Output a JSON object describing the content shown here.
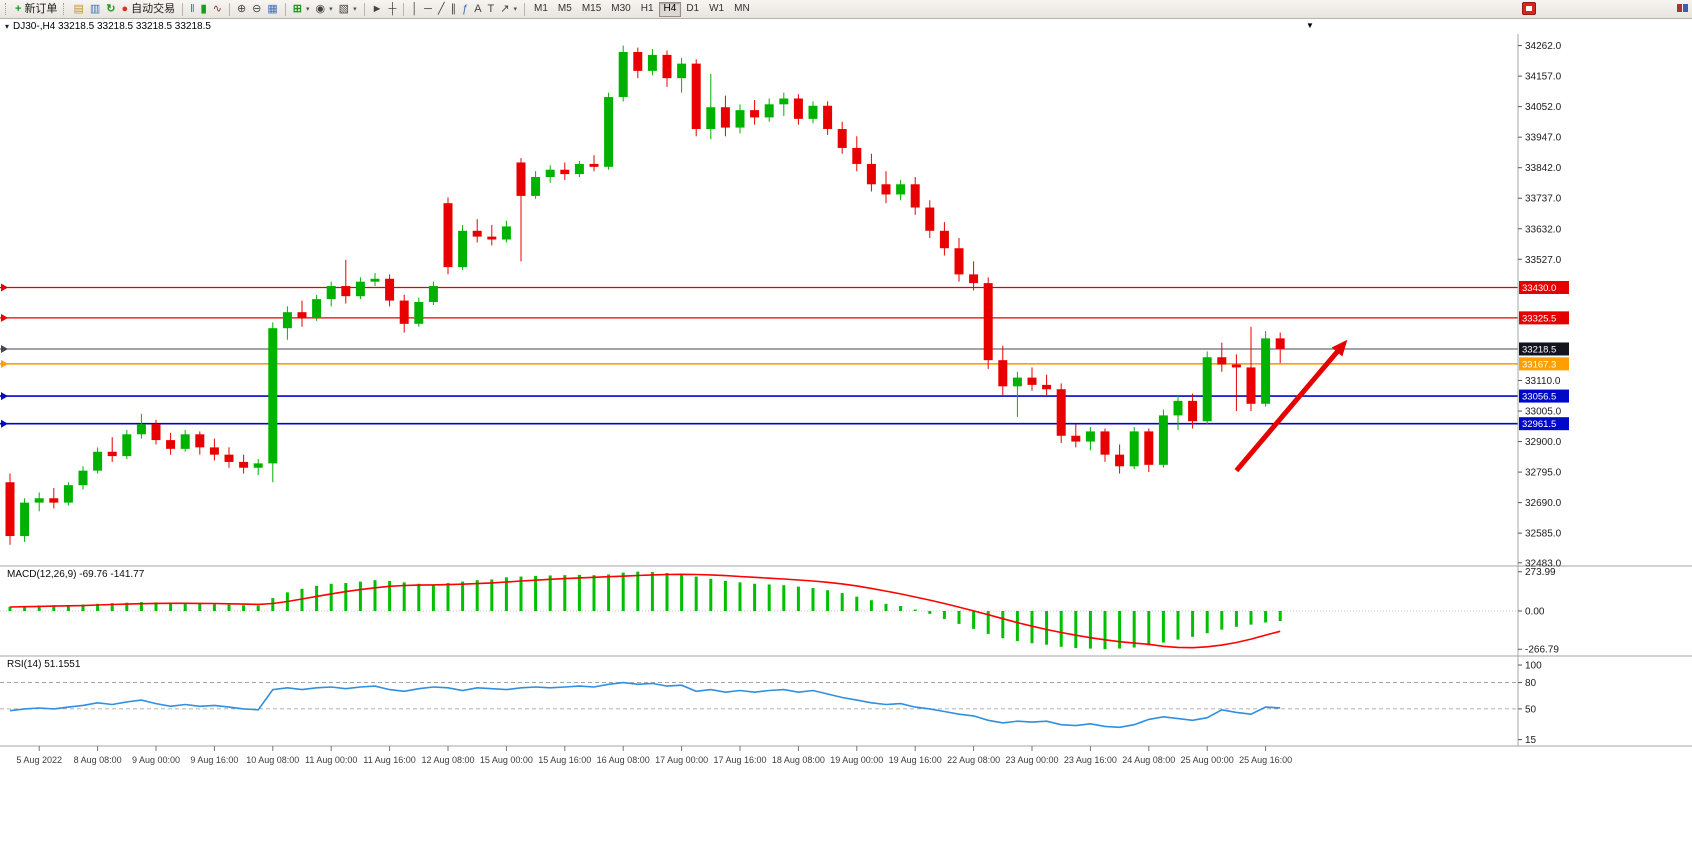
{
  "toolbar": {
    "new_order_label": "新订单",
    "autotrading_label": "自动交易",
    "timeframes": [
      "M1",
      "M5",
      "M15",
      "M30",
      "H1",
      "H4",
      "D1",
      "W1",
      "MN"
    ],
    "active_timeframe": "H4",
    "icons": {
      "new_order": "+",
      "market_watch": "▤",
      "data_window": "▥",
      "refresh": "↻",
      "autotrading_dot": "●",
      "bar_chart": "‖",
      "candle_chart": "▮",
      "line_chart": "∿",
      "zoom_in": "⊕",
      "zoom_out": "⊖",
      "tile_windows": "▦",
      "indicators": "⊞",
      "periods": "◉",
      "templates": "▧",
      "cursor": "►",
      "crosshair": "┼",
      "vertical_line": "│",
      "horizontal_line": "─",
      "trendline": "╱",
      "channel": "∥",
      "fibonacci": "ƒ",
      "text": "A",
      "text_label": "T",
      "arrow_tool": "↗",
      "caret": "▾",
      "header_marker": "▾",
      "shift_marker": "▼"
    }
  },
  "chart_header": {
    "title": "DJ30-,H4 33218.5 33218.5 33218.5 33218.5"
  },
  "chart_data": {
    "type": "candlestick",
    "symbol": "DJ30-",
    "timeframe": "H4",
    "ohlc_display": "33218.5 33218.5 33218.5 33218.5",
    "colors": {
      "up": "#00b200",
      "down": "#e80000",
      "macd_hist": "#00c000",
      "macd_signal": "#ff0000",
      "rsi_line": "#2f8fe0"
    },
    "y_ticks": [
      "34262.0",
      "34157.0",
      "34052.0",
      "33947.0",
      "33842.0",
      "33737.0",
      "33632.0",
      "33527.0",
      "33110.0",
      "33005.0",
      "32900.0",
      "32795.0",
      "32690.0",
      "32585.0",
      "32483.0"
    ],
    "price_lines": [
      {
        "price": 33430.0,
        "label": "33430.0",
        "color": "#e40000",
        "width": 1.3
      },
      {
        "price": 33325.5,
        "label": "33325.5",
        "color": "#e40000",
        "width": 1.3
      },
      {
        "price": 33218.5,
        "label": "33218.5",
        "color": "#46464f",
        "width": 1,
        "badge": "#14141e"
      },
      {
        "price": 33167.3,
        "label": "33167.3",
        "color": "#ff9e00",
        "width": 1.6
      },
      {
        "price": 33056.5,
        "label": "33056.5",
        "color": "#0008c8",
        "width": 1.6
      },
      {
        "price": 32961.5,
        "label": "32961.5",
        "color": "#0008c8",
        "width": 1.6
      }
    ],
    "trend_arrow": {
      "from_bar": 84,
      "from_price": 32800,
      "to_bar": 91.6,
      "to_price": 33250,
      "color": "#e60000"
    },
    "time_labels": [
      {
        "i": 2,
        "t": "5 Aug 2022"
      },
      {
        "i": 6,
        "t": "8 Aug 08:00"
      },
      {
        "i": 10,
        "t": "9 Aug 00:00"
      },
      {
        "i": 14,
        "t": "9 Aug 16:00"
      },
      {
        "i": 18,
        "t": "10 Aug 08:00"
      },
      {
        "i": 22,
        "t": "11 Aug 00:00"
      },
      {
        "i": 26,
        "t": "11 Aug 16:00"
      },
      {
        "i": 30,
        "t": "12 Aug 08:00"
      },
      {
        "i": 34,
        "t": "15 Aug 00:00"
      },
      {
        "i": 38,
        "t": "15 Aug 16:00"
      },
      {
        "i": 42,
        "t": "16 Aug 08:00"
      },
      {
        "i": 46,
        "t": "17 Aug 00:00"
      },
      {
        "i": 50,
        "t": "17 Aug 16:00"
      },
      {
        "i": 54,
        "t": "18 Aug 08:00"
      },
      {
        "i": 58,
        "t": "19 Aug 00:00"
      },
      {
        "i": 62,
        "t": "19 Aug 16:00"
      },
      {
        "i": 66,
        "t": "22 Aug 08:00"
      },
      {
        "i": 70,
        "t": "23 Aug 00:00"
      },
      {
        "i": 74,
        "t": "23 Aug 16:00"
      },
      {
        "i": 78,
        "t": "24 Aug 08:00"
      },
      {
        "i": 82,
        "t": "25 Aug 00:00"
      },
      {
        "i": 86,
        "t": "25 Aug 16:00"
      }
    ],
    "candles": [
      [
        32760,
        32790,
        32545,
        32575
      ],
      [
        32575,
        32705,
        32555,
        32690
      ],
      [
        32690,
        32725,
        32660,
        32705
      ],
      [
        32705,
        32740,
        32670,
        32690
      ],
      [
        32690,
        32760,
        32680,
        32750
      ],
      [
        32750,
        32815,
        32735,
        32800
      ],
      [
        32800,
        32880,
        32790,
        32865
      ],
      [
        32865,
        32915,
        32830,
        32850
      ],
      [
        32850,
        32940,
        32840,
        32925
      ],
      [
        32925,
        32995,
        32910,
        32960
      ],
      [
        32960,
        32975,
        32890,
        32905
      ],
      [
        32905,
        32930,
        32855,
        32875
      ],
      [
        32875,
        32940,
        32865,
        32925
      ],
      [
        32925,
        32935,
        32855,
        32880
      ],
      [
        32880,
        32910,
        32835,
        32855
      ],
      [
        32855,
        32880,
        32810,
        32830
      ],
      [
        32830,
        32855,
        32790,
        32810
      ],
      [
        32810,
        32840,
        32785,
        32825
      ],
      [
        32825,
        33310,
        32760,
        33290
      ],
      [
        33290,
        33365,
        33250,
        33345
      ],
      [
        33345,
        33385,
        33295,
        33325
      ],
      [
        33325,
        33405,
        33315,
        33390
      ],
      [
        33390,
        33450,
        33365,
        33435
      ],
      [
        33435,
        33525,
        33375,
        33400
      ],
      [
        33400,
        33465,
        33390,
        33450
      ],
      [
        33450,
        33480,
        33435,
        33460
      ],
      [
        33460,
        33475,
        33365,
        33385
      ],
      [
        33385,
        33405,
        33275,
        33305
      ],
      [
        33305,
        33395,
        33295,
        33380
      ],
      [
        33380,
        33450,
        33370,
        33435
      ],
      [
        33720,
        33740,
        33475,
        33500
      ],
      [
        33500,
        33645,
        33490,
        33625
      ],
      [
        33625,
        33665,
        33585,
        33605
      ],
      [
        33605,
        33645,
        33575,
        33595
      ],
      [
        33595,
        33660,
        33585,
        33640
      ],
      [
        33860,
        33875,
        33520,
        33745
      ],
      [
        33745,
        33830,
        33735,
        33810
      ],
      [
        33810,
        33850,
        33790,
        33835
      ],
      [
        33835,
        33860,
        33800,
        33820
      ],
      [
        33820,
        33865,
        33810,
        33855
      ],
      [
        33855,
        33885,
        33830,
        33845
      ],
      [
        33845,
        34100,
        33835,
        34085
      ],
      [
        34085,
        34262,
        34070,
        34240
      ],
      [
        34240,
        34255,
        34150,
        34175
      ],
      [
        34175,
        34250,
        34160,
        34230
      ],
      [
        34230,
        34245,
        34120,
        34150
      ],
      [
        34150,
        34220,
        34100,
        34200
      ],
      [
        34200,
        34215,
        33950,
        33975
      ],
      [
        33975,
        34165,
        33940,
        34050
      ],
      [
        34050,
        34090,
        33950,
        33980
      ],
      [
        33980,
        34060,
        33960,
        34040
      ],
      [
        34040,
        34075,
        33990,
        34015
      ],
      [
        34015,
        34080,
        34000,
        34060
      ],
      [
        34060,
        34100,
        34020,
        34080
      ],
      [
        34080,
        34095,
        33990,
        34010
      ],
      [
        34010,
        34070,
        33995,
        34055
      ],
      [
        34055,
        34070,
        33955,
        33975
      ],
      [
        33975,
        34000,
        33890,
        33910
      ],
      [
        33910,
        33950,
        33830,
        33855
      ],
      [
        33855,
        33890,
        33760,
        33785
      ],
      [
        33785,
        33830,
        33720,
        33750
      ],
      [
        33750,
        33800,
        33730,
        33785
      ],
      [
        33785,
        33810,
        33680,
        33705
      ],
      [
        33705,
        33730,
        33600,
        33625
      ],
      [
        33625,
        33655,
        33540,
        33565
      ],
      [
        33565,
        33600,
        33450,
        33475
      ],
      [
        33475,
        33520,
        33420,
        33445
      ],
      [
        33445,
        33465,
        33150,
        33180
      ],
      [
        33180,
        33230,
        33060,
        33090
      ],
      [
        33090,
        33140,
        32985,
        33120
      ],
      [
        33120,
        33155,
        33075,
        33095
      ],
      [
        33095,
        33130,
        33060,
        33080
      ],
      [
        33080,
        33100,
        32895,
        32920
      ],
      [
        32920,
        32960,
        32880,
        32900
      ],
      [
        32900,
        32950,
        32870,
        32935
      ],
      [
        32935,
        32945,
        32830,
        32855
      ],
      [
        32855,
        32890,
        32790,
        32815
      ],
      [
        32815,
        32950,
        32805,
        32935
      ],
      [
        32935,
        32945,
        32795,
        32820
      ],
      [
        32820,
        33010,
        32810,
        32990
      ],
      [
        32990,
        33060,
        32940,
        33040
      ],
      [
        33040,
        33065,
        32945,
        32970
      ],
      [
        32970,
        33210,
        32960,
        33190
      ],
      [
        33190,
        33240,
        33140,
        33165
      ],
      [
        33165,
        33200,
        33005,
        33155
      ],
      [
        33155,
        33295,
        33005,
        33030
      ],
      [
        33030,
        33280,
        33020,
        33255
      ],
      [
        33255,
        33275,
        33170,
        33218.5
      ]
    ],
    "indicators": {
      "macd": {
        "name": "MACD(12,26,9)",
        "label_text": "MACD(12,26,9) -69.76 -141.77",
        "main_value": -69.76,
        "signal_value": -141.77,
        "axis_ticks": [
          "273.99",
          "0.00",
          "-266.79"
        ],
        "histogram": [
          30,
          35,
          38,
          40,
          42,
          45,
          50,
          55,
          58,
          62,
          60,
          55,
          52,
          50,
          48,
          44,
          40,
          38,
          90,
          130,
          155,
          175,
          190,
          195,
          205,
          215,
          210,
          200,
          190,
          180,
          195,
          205,
          215,
          220,
          235,
          240,
          245,
          248,
          250,
          252,
          250,
          255,
          268,
          275,
          272,
          265,
          258,
          240,
          225,
          210,
          200,
          190,
          185,
          180,
          170,
          160,
          145,
          125,
          100,
          75,
          50,
          35,
          10,
          -20,
          -55,
          -90,
          -125,
          -160,
          -190,
          -210,
          -225,
          -235,
          -250,
          -258,
          -262,
          -266,
          -262,
          -255,
          -240,
          -220,
          -200,
          -180,
          -155,
          -130,
          -110,
          -95,
          -80,
          -69.76
        ],
        "signal": [
          28,
          30,
          32,
          34,
          36,
          38,
          42,
          45,
          48,
          51,
          53,
          54,
          54,
          53,
          52,
          50,
          48,
          46,
          52,
          66,
          84,
          102,
          119,
          135,
          149,
          162,
          172,
          178,
          181,
          182,
          184,
          187,
          191,
          196,
          202,
          209,
          215,
          221,
          226,
          231,
          235,
          239,
          243,
          248,
          252,
          255,
          256,
          255,
          252,
          247,
          241,
          235,
          229,
          223,
          216,
          209,
          200,
          189,
          175,
          158,
          139,
          119,
          98,
          76,
          52,
          27,
          1,
          -26,
          -54,
          -81,
          -106,
          -129,
          -150,
          -169,
          -186,
          -201,
          -214,
          -224,
          -232,
          -246,
          -254,
          -256,
          -250,
          -238,
          -220,
          -196,
          -168,
          -141.77
        ]
      },
      "rsi": {
        "name": "RSI(14)",
        "label_text": "RSI(14) 51.1551",
        "value": 51.1551,
        "axis_ticks": [
          "100",
          "80",
          "50",
          "15"
        ],
        "levels": [
          80,
          50
        ],
        "series": [
          48,
          50,
          51,
          50,
          52,
          54,
          57,
          55,
          58,
          60,
          56,
          53,
          55,
          53,
          54,
          52,
          50,
          49,
          72,
          74,
          72,
          74,
          75,
          73,
          75,
          76,
          72,
          70,
          73,
          75,
          74,
          71,
          74,
          73,
          72,
          74,
          75,
          74,
          75,
          76,
          75,
          78,
          80,
          78,
          79,
          76,
          77,
          70,
          72,
          69,
          71,
          69,
          71,
          72,
          69,
          71,
          67,
          63,
          60,
          57,
          55,
          56,
          52,
          50,
          47,
          44,
          42,
          37,
          34,
          36,
          35,
          36,
          32,
          31,
          33,
          30,
          29,
          32,
          38,
          41,
          39,
          37,
          40,
          49,
          46,
          44,
          52,
          51.1551
        ]
      }
    }
  }
}
